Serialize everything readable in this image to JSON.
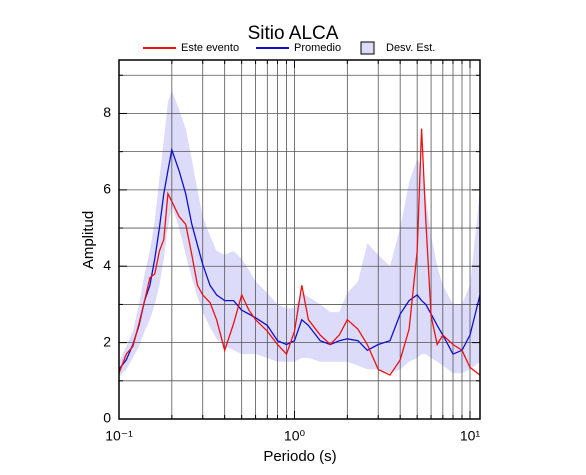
{
  "chart_data": {
    "type": "line",
    "title": "Sitio ALCA",
    "xlabel": "Periodo (s)",
    "ylabel": "Amplitud",
    "xscale": "log",
    "grid": true,
    "legend": "top",
    "xlim": [
      0.1,
      11.4
    ],
    "ylim": [
      0,
      9.4
    ],
    "xticks": [
      {
        "value": 0.1,
        "label": "10⁻¹"
      },
      {
        "value": 1,
        "label": "10⁰"
      },
      {
        "value": 10,
        "label": "10¹"
      }
    ],
    "x_minor_ticks": [
      0.2,
      0.3,
      0.4,
      0.5,
      0.6,
      0.7,
      0.8,
      0.9,
      2,
      3,
      4,
      5,
      6,
      7,
      8,
      9
    ],
    "yticks": [
      0,
      2,
      4,
      6,
      8
    ],
    "y_minor_ticks": [
      1,
      3,
      5,
      7,
      9
    ],
    "x": [
      0.1,
      0.11,
      0.12,
      0.13,
      0.14,
      0.15,
      0.16,
      0.17,
      0.18,
      0.19,
      0.2,
      0.22,
      0.24,
      0.26,
      0.28,
      0.3,
      0.33,
      0.36,
      0.4,
      0.45,
      0.5,
      0.55,
      0.6,
      0.7,
      0.8,
      0.9,
      1.0,
      1.1,
      1.2,
      1.4,
      1.6,
      1.8,
      2.0,
      2.3,
      2.6,
      3.0,
      3.5,
      4.0,
      4.5,
      5.0,
      5.3,
      5.6,
      6.0,
      6.5,
      7,
      8,
      9,
      10,
      11.4
    ],
    "band": {
      "name": "Desv. Est.",
      "color": "#dcdcfa",
      "lower": [
        1.1,
        1.3,
        1.6,
        1.9,
        2.3,
        2.6,
        3.0,
        3.5,
        4.2,
        5.0,
        5.6,
        5.0,
        4.3,
        3.7,
        3.2,
        2.8,
        2.4,
        2.1,
        1.9,
        1.8,
        1.7,
        1.7,
        1.7,
        1.6,
        1.5,
        1.5,
        1.5,
        1.6,
        1.6,
        1.5,
        1.5,
        1.5,
        1.5,
        1.4,
        1.3,
        1.3,
        1.2,
        1.3,
        1.5,
        1.6,
        1.7,
        1.7,
        1.6,
        1.5,
        1.4,
        1.2,
        1.2,
        1.3,
        1.5
      ],
      "upper": [
        1.5,
        1.9,
        2.3,
        3.0,
        3.8,
        4.4,
        5.2,
        6.3,
        7.3,
        8.3,
        8.6,
        8.1,
        7.6,
        6.8,
        6.0,
        5.3,
        4.8,
        4.4,
        4.3,
        4.4,
        4.2,
        3.9,
        3.6,
        3.3,
        3.0,
        2.9,
        2.9,
        3.3,
        3.2,
        3.0,
        2.8,
        2.8,
        3.3,
        3.6,
        4.6,
        4.3,
        4.0,
        5.0,
        6.2,
        6.8,
        6.6,
        5.8,
        4.8,
        4.0,
        3.5,
        3.0,
        3.0,
        3.5,
        6.0
      ]
    },
    "series": [
      {
        "name": "Este evento",
        "color": "#ee1111",
        "values": [
          1.2,
          1.7,
          1.9,
          2.5,
          3.1,
          3.7,
          3.8,
          4.4,
          4.7,
          5.9,
          5.7,
          5.3,
          5.1,
          4.3,
          3.5,
          3.25,
          3.05,
          2.6,
          1.8,
          2.5,
          3.25,
          2.85,
          2.6,
          2.3,
          1.95,
          1.7,
          2.3,
          3.5,
          2.6,
          2.2,
          1.95,
          2.2,
          2.6,
          2.35,
          1.95,
          1.3,
          1.15,
          1.55,
          2.35,
          4.4,
          7.6,
          5.2,
          2.7,
          1.95,
          2.2,
          1.95,
          1.8,
          1.35,
          1.15
        ]
      },
      {
        "name": "Promedio",
        "color": "#1111cc",
        "values": [
          1.3,
          1.55,
          1.95,
          2.45,
          3.1,
          3.5,
          4.2,
          5.0,
          5.9,
          6.5,
          7.05,
          6.5,
          5.9,
          5.1,
          4.55,
          4.05,
          3.5,
          3.25,
          3.1,
          3.1,
          2.85,
          2.75,
          2.65,
          2.45,
          2.05,
          1.95,
          2.05,
          2.6,
          2.45,
          2.05,
          1.95,
          2.05,
          2.1,
          2.05,
          1.8,
          1.95,
          2.05,
          2.75,
          3.1,
          3.25,
          3.1,
          3.0,
          2.75,
          2.45,
          2.2,
          1.7,
          1.8,
          2.2,
          3.25
        ]
      }
    ]
  }
}
